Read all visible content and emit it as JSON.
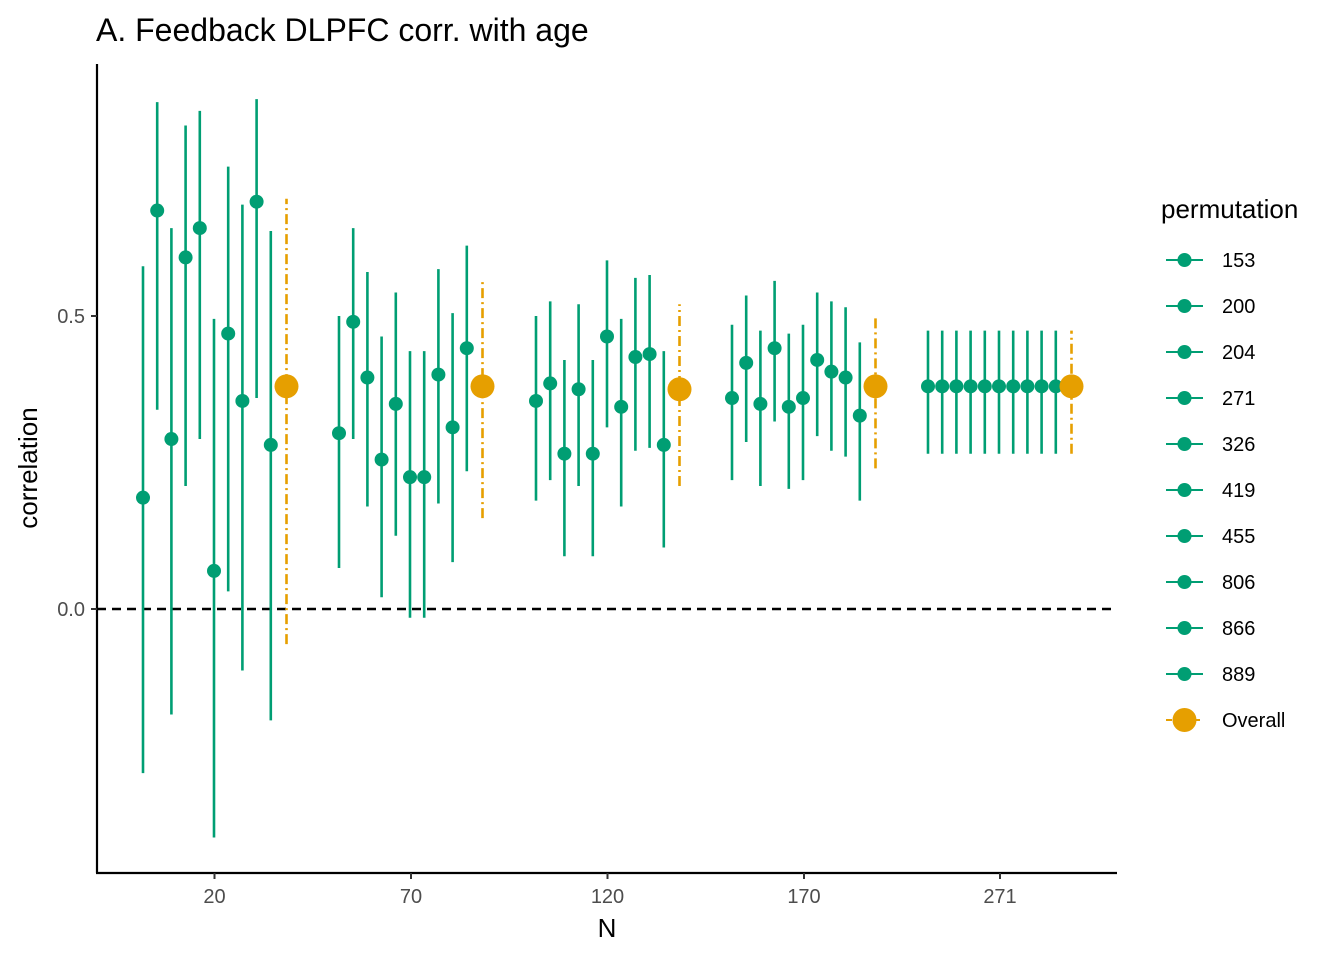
{
  "chart_data": {
    "type": "scatter",
    "title": "A. Feedback DLPFC corr. with age",
    "xlabel": "N",
    "ylabel": "correlation",
    "x_categories": [
      "20",
      "70",
      "120",
      "170",
      "271"
    ],
    "y_ticks": [
      "0.0",
      "0.5"
    ],
    "y_tick_values": [
      0.0,
      0.5
    ],
    "ylim": [
      -0.45,
      0.93
    ],
    "reference_line": {
      "y": 0,
      "style": "dashed",
      "color": "#000000"
    },
    "legend": {
      "title": "permutation",
      "placement": "right",
      "entries": [
        "153",
        "200",
        "204",
        "271",
        "326",
        "419",
        "455",
        "806",
        "866",
        "889",
        "Overall"
      ]
    },
    "colors": {
      "permutation": "#009E73",
      "overall": "#E69F00"
    },
    "groups": [
      {
        "N": "20",
        "permutations": [
          {
            "r": 0.19,
            "lo": -0.28,
            "hi": 0.585
          },
          {
            "r": 0.68,
            "lo": 0.34,
            "hi": 0.865
          },
          {
            "r": 0.29,
            "lo": -0.18,
            "hi": 0.65
          },
          {
            "r": 0.6,
            "lo": 0.21,
            "hi": 0.825
          },
          {
            "r": 0.65,
            "lo": 0.29,
            "hi": 0.85
          },
          {
            "r": 0.065,
            "lo": -0.39,
            "hi": 0.495
          },
          {
            "r": 0.47,
            "lo": 0.03,
            "hi": 0.755
          },
          {
            "r": 0.355,
            "lo": -0.105,
            "hi": 0.69
          },
          {
            "r": 0.695,
            "lo": 0.36,
            "hi": 0.87
          },
          {
            "r": 0.28,
            "lo": -0.19,
            "hi": 0.645
          }
        ],
        "overall": {
          "r": 0.38,
          "lo": -0.06,
          "hi": 0.7
        }
      },
      {
        "N": "70",
        "permutations": [
          {
            "r": 0.3,
            "lo": 0.07,
            "hi": 0.5
          },
          {
            "r": 0.49,
            "lo": 0.29,
            "hi": 0.65
          },
          {
            "r": 0.395,
            "lo": 0.175,
            "hi": 0.575
          },
          {
            "r": 0.255,
            "lo": 0.02,
            "hi": 0.465
          },
          {
            "r": 0.35,
            "lo": 0.125,
            "hi": 0.54
          },
          {
            "r": 0.225,
            "lo": -0.015,
            "hi": 0.44
          },
          {
            "r": 0.225,
            "lo": -0.015,
            "hi": 0.44
          },
          {
            "r": 0.4,
            "lo": 0.18,
            "hi": 0.58
          },
          {
            "r": 0.31,
            "lo": 0.08,
            "hi": 0.505
          },
          {
            "r": 0.445,
            "lo": 0.235,
            "hi": 0.62
          }
        ],
        "overall": {
          "r": 0.38,
          "lo": 0.155,
          "hi": 0.56
        }
      },
      {
        "N": "120",
        "permutations": [
          {
            "r": 0.355,
            "lo": 0.185,
            "hi": 0.5
          },
          {
            "r": 0.385,
            "lo": 0.22,
            "hi": 0.525
          },
          {
            "r": 0.265,
            "lo": 0.09,
            "hi": 0.425
          },
          {
            "r": 0.375,
            "lo": 0.21,
            "hi": 0.52
          },
          {
            "r": 0.265,
            "lo": 0.09,
            "hi": 0.425
          },
          {
            "r": 0.465,
            "lo": 0.31,
            "hi": 0.595
          },
          {
            "r": 0.345,
            "lo": 0.175,
            "hi": 0.495
          },
          {
            "r": 0.43,
            "lo": 0.27,
            "hi": 0.565
          },
          {
            "r": 0.435,
            "lo": 0.275,
            "hi": 0.57
          },
          {
            "r": 0.28,
            "lo": 0.105,
            "hi": 0.44
          }
        ],
        "overall": {
          "r": 0.375,
          "lo": 0.21,
          "hi": 0.52
        }
      },
      {
        "N": "170",
        "permutations": [
          {
            "r": 0.36,
            "lo": 0.22,
            "hi": 0.485
          },
          {
            "r": 0.42,
            "lo": 0.285,
            "hi": 0.535
          },
          {
            "r": 0.35,
            "lo": 0.21,
            "hi": 0.475
          },
          {
            "r": 0.445,
            "lo": 0.32,
            "hi": 0.56
          },
          {
            "r": 0.345,
            "lo": 0.205,
            "hi": 0.47
          },
          {
            "r": 0.36,
            "lo": 0.22,
            "hi": 0.485
          },
          {
            "r": 0.425,
            "lo": 0.295,
            "hi": 0.54
          },
          {
            "r": 0.405,
            "lo": 0.27,
            "hi": 0.525
          },
          {
            "r": 0.395,
            "lo": 0.26,
            "hi": 0.515
          },
          {
            "r": 0.33,
            "lo": 0.185,
            "hi": 0.455
          }
        ],
        "overall": {
          "r": 0.38,
          "lo": 0.24,
          "hi": 0.5
        }
      },
      {
        "N": "271",
        "permutations": [
          {
            "r": 0.38,
            "lo": 0.265,
            "hi": 0.475
          },
          {
            "r": 0.38,
            "lo": 0.265,
            "hi": 0.475
          },
          {
            "r": 0.38,
            "lo": 0.265,
            "hi": 0.475
          },
          {
            "r": 0.38,
            "lo": 0.265,
            "hi": 0.475
          },
          {
            "r": 0.38,
            "lo": 0.265,
            "hi": 0.475
          },
          {
            "r": 0.38,
            "lo": 0.265,
            "hi": 0.475
          },
          {
            "r": 0.38,
            "lo": 0.265,
            "hi": 0.475
          },
          {
            "r": 0.38,
            "lo": 0.265,
            "hi": 0.475
          },
          {
            "r": 0.38,
            "lo": 0.265,
            "hi": 0.475
          },
          {
            "r": 0.38,
            "lo": 0.265,
            "hi": 0.475
          }
        ],
        "overall": {
          "r": 0.38,
          "lo": 0.265,
          "hi": 0.475
        }
      }
    ]
  }
}
